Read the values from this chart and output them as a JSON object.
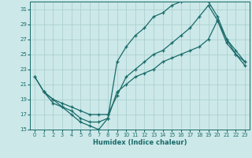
{
  "bg_color": "#cce8e8",
  "line_color": "#1a6b6b",
  "grid_color": "#a8cccc",
  "xlabel": "Humidex (Indice chaleur)",
  "xlim": [
    -0.5,
    23.5
  ],
  "ylim": [
    15,
    32
  ],
  "xticks": [
    0,
    1,
    2,
    3,
    4,
    5,
    6,
    7,
    8,
    9,
    10,
    11,
    12,
    13,
    14,
    15,
    16,
    17,
    18,
    19,
    20,
    21,
    22,
    23
  ],
  "yticks": [
    15,
    17,
    19,
    21,
    23,
    25,
    27,
    29,
    31
  ],
  "line1_x": [
    0,
    1,
    2,
    3,
    4,
    5,
    6,
    7,
    8,
    9,
    10,
    11,
    12,
    13,
    14,
    15,
    16,
    17,
    18,
    19,
    20,
    21,
    22,
    23
  ],
  "line1_y": [
    22,
    20,
    19,
    18,
    17.5,
    16.5,
    16,
    16,
    16.5,
    20,
    21,
    22,
    22.5,
    23,
    24,
    24.5,
    25,
    25.5,
    26,
    27,
    29.5,
    26.5,
    25,
    24
  ],
  "line2_x": [
    0,
    1,
    2,
    3,
    4,
    5,
    6,
    7,
    8,
    9,
    10,
    11,
    12,
    13,
    14,
    15,
    16,
    17,
    18,
    19,
    20,
    21,
    22,
    23
  ],
  "line2_y": [
    22,
    20,
    18.5,
    18,
    17,
    16,
    15.5,
    15,
    16.5,
    24,
    26,
    27.5,
    28.5,
    30,
    30.5,
    31.5,
    32,
    32.5,
    32.5,
    32,
    30,
    27,
    25.5,
    24
  ],
  "line3_x": [
    1,
    2,
    3,
    4,
    5,
    6,
    7,
    8,
    9,
    10,
    11,
    12,
    13,
    14,
    15,
    16,
    17,
    18,
    19,
    20,
    21,
    22,
    23
  ],
  "line3_y": [
    20,
    19,
    18.5,
    18,
    17.5,
    17,
    17,
    17,
    19.5,
    22,
    23,
    24,
    25,
    25.5,
    26.5,
    27.5,
    28.5,
    30,
    31.5,
    29.5,
    27,
    25,
    23.5
  ]
}
